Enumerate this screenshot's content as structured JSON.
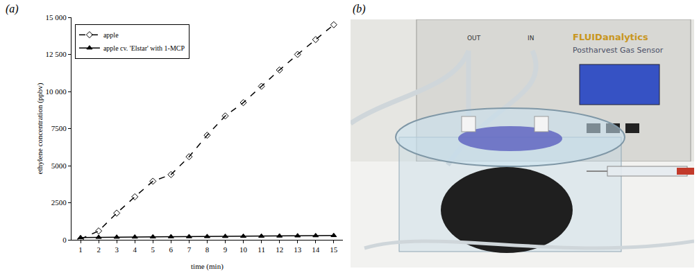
{
  "chart_data": {
    "type": "line",
    "x_label": "time (min)",
    "y_label": "ethylene concentration (ppbv)",
    "x": [
      1,
      2,
      3,
      4,
      5,
      6,
      7,
      8,
      9,
      10,
      11,
      12,
      13,
      14,
      15
    ],
    "series": [
      {
        "name": "apple",
        "color": "#000000",
        "marker": "diamond-open",
        "line_style": "dash",
        "values": [
          50,
          600,
          1800,
          2900,
          3950,
          4400,
          5600,
          7050,
          8350,
          9250,
          10350,
          11450,
          12500,
          13500,
          14500
        ]
      },
      {
        "name": "apple cv. 'Elstar' with 1-MCP",
        "color": "#000000",
        "marker": "triangle-up",
        "line_style": "solid",
        "values": [
          150,
          170,
          180,
          190,
          200,
          210,
          215,
          220,
          230,
          240,
          250,
          260,
          270,
          280,
          290
        ]
      }
    ],
    "xlim": [
      0.5,
      15.5
    ],
    "xticks": [
      1,
      2,
      3,
      4,
      5,
      6,
      7,
      8,
      9,
      10,
      11,
      12,
      13,
      14,
      15
    ],
    "ylim": [
      0,
      15000
    ],
    "yticks": [
      0,
      2500,
      5000,
      7500,
      {
        "value": 10000,
        "label": "10 000"
      },
      {
        "value": 12500,
        "label": "12 500"
      },
      {
        "value": 15000,
        "label": "15 000"
      }
    ],
    "grid": false,
    "legend": "upper left"
  },
  "panel_labels": [
    "(a)",
    "(b)"
  ],
  "photo": {
    "device_brand": "FLUIDanalytics",
    "device_name": "Postharvest Gas Sensor",
    "ports": [
      "OUT",
      "IN"
    ]
  }
}
